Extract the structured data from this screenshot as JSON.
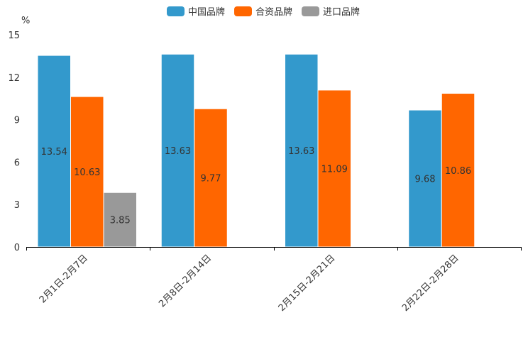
{
  "chart_data": {
    "type": "bar",
    "title": "",
    "xlabel": "",
    "ylabel": "%",
    "ylim": [
      0,
      15
    ],
    "yticks": [
      0,
      3,
      6,
      9,
      12,
      15
    ],
    "grid": false,
    "legend_position": "top-center",
    "categories": [
      "2月1日-2月7日",
      "2月8日-2月14日",
      "2月15日-2月21日",
      "2月22日-2月28日"
    ],
    "series": [
      {
        "name": "中国品牌",
        "color": "#3399cc",
        "values": [
          13.54,
          13.63,
          13.63,
          9.68
        ],
        "labels": [
          "13.54",
          "13.63",
          "13.63",
          "9.68"
        ]
      },
      {
        "name": "合资品牌",
        "color": "#ff6600",
        "values": [
          10.63,
          9.77,
          11.09,
          10.86
        ],
        "labels": [
          "10.63",
          "9.77",
          "11.09",
          "10.86"
        ]
      },
      {
        "name": "进口品牌",
        "color": "#999999",
        "values": [
          3.85,
          null,
          null,
          null
        ],
        "labels": [
          "3.85",
          null,
          null,
          null
        ]
      }
    ]
  }
}
